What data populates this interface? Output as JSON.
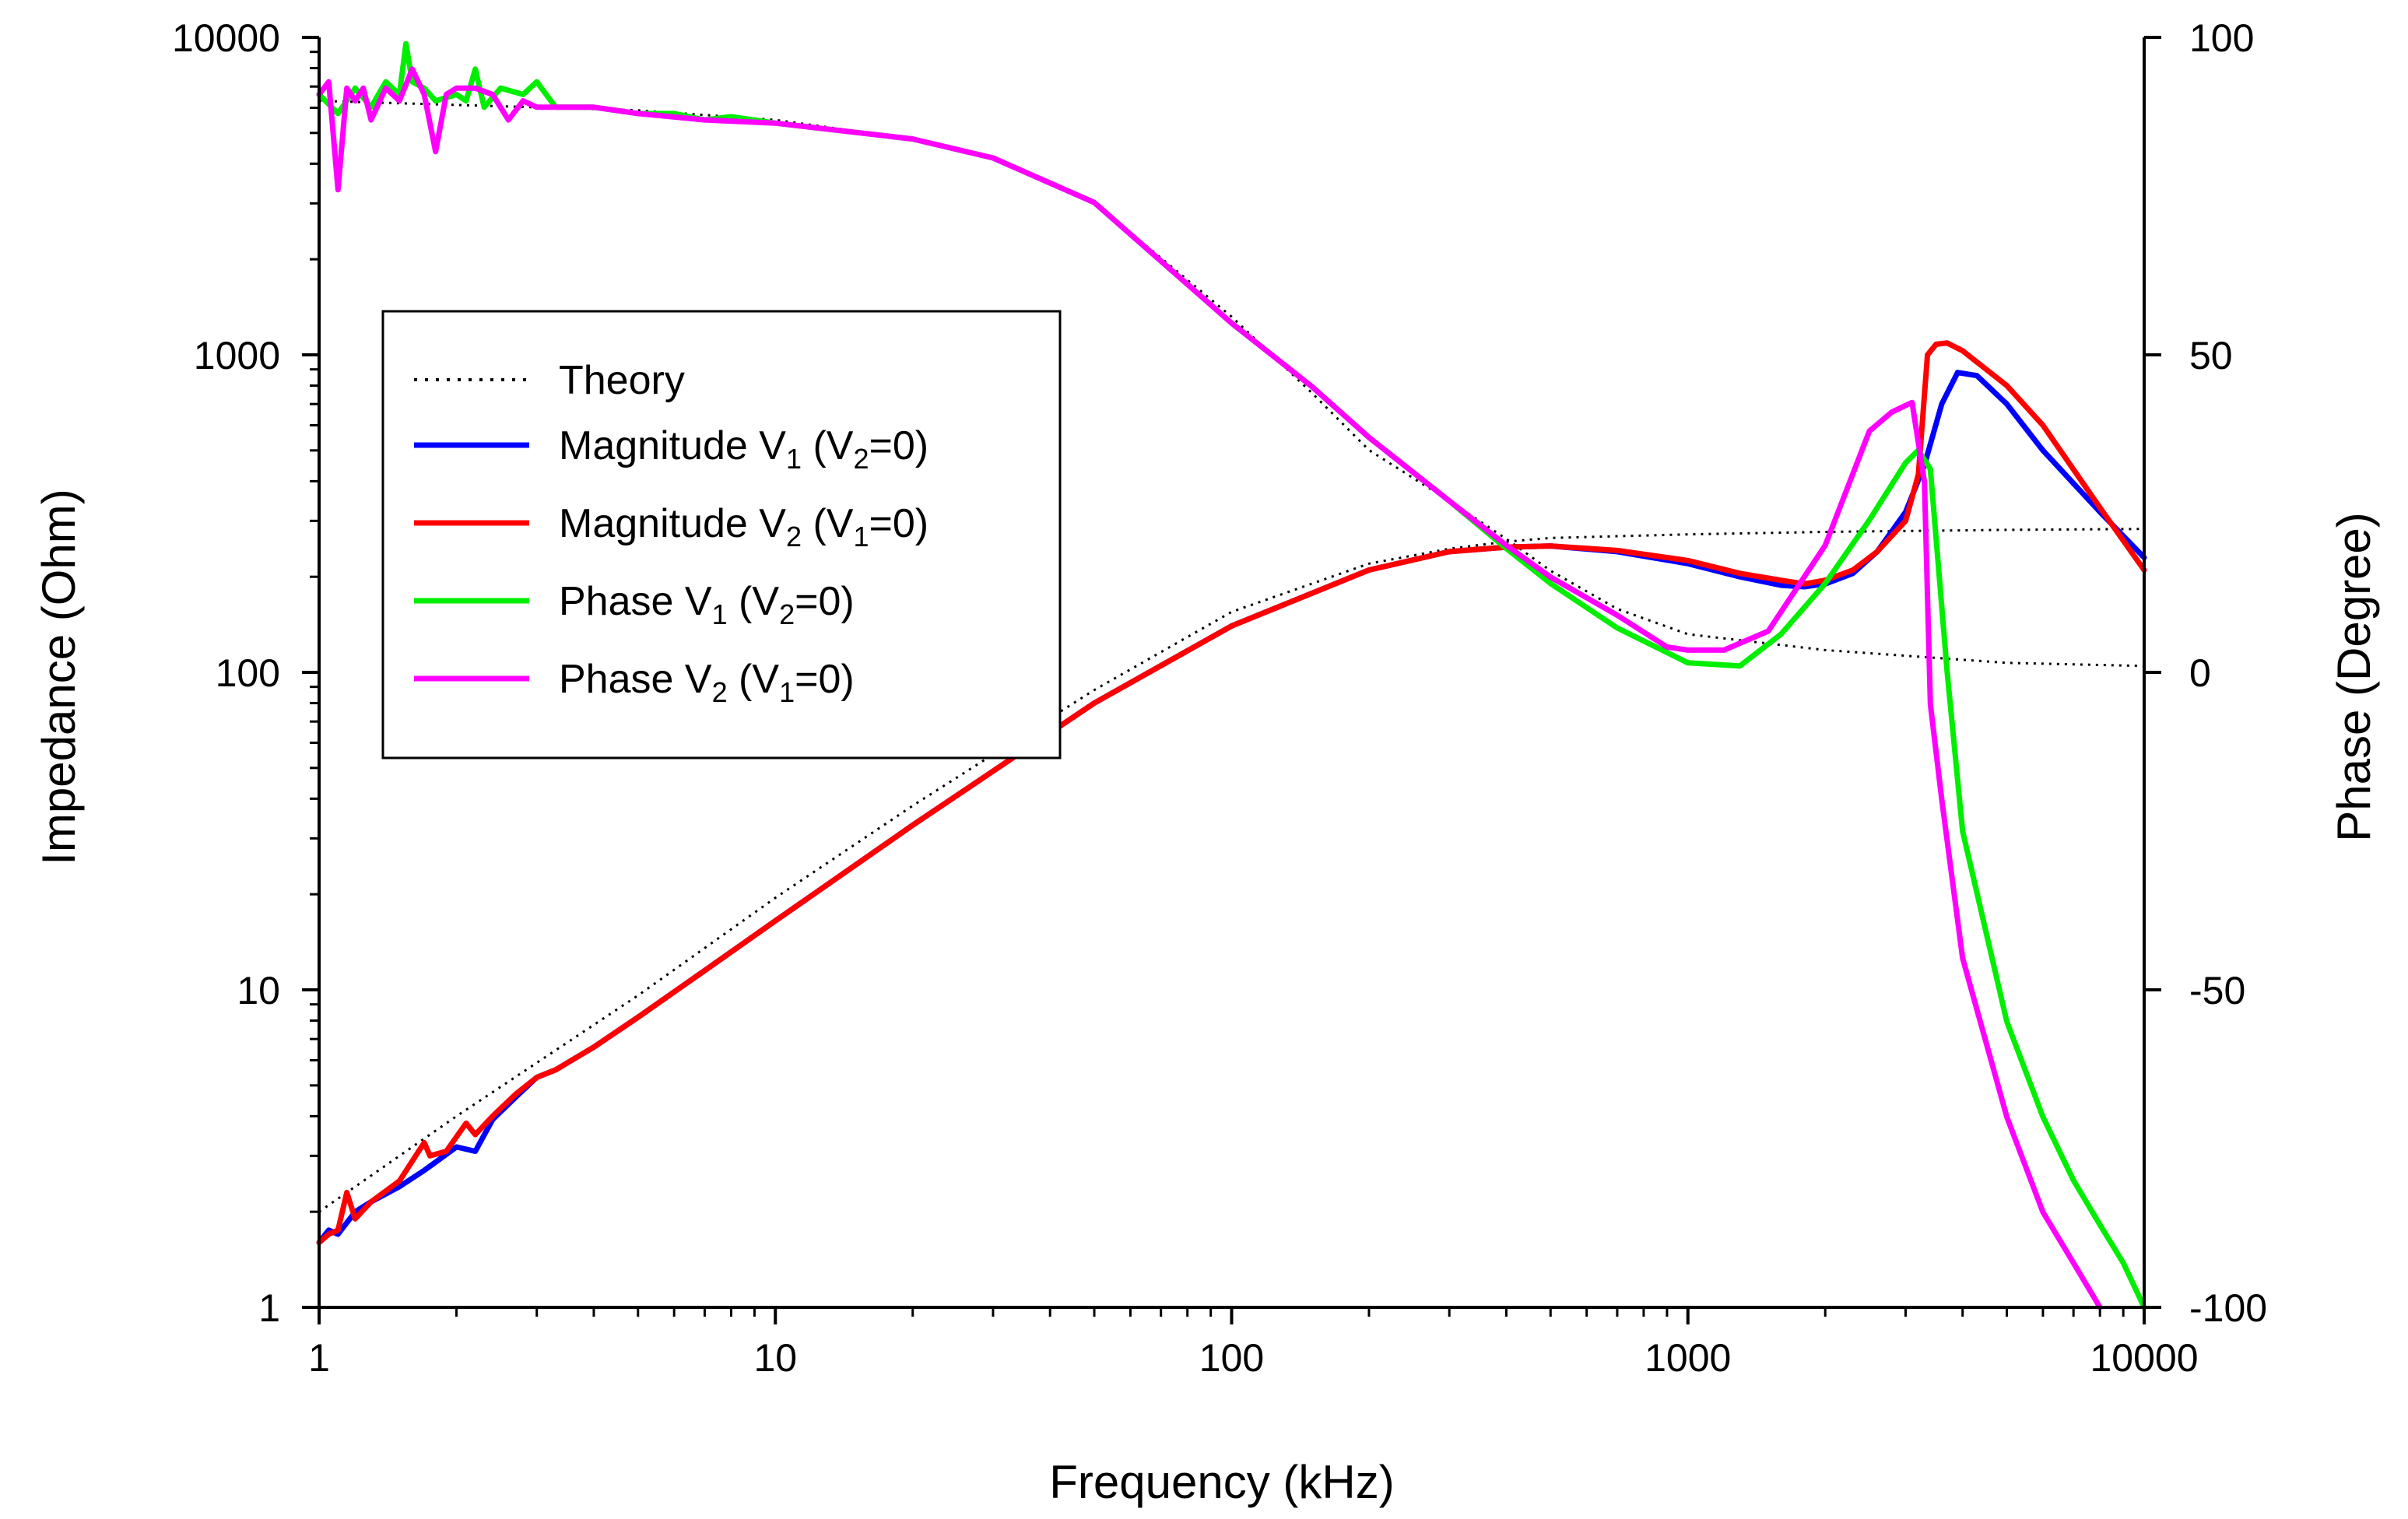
{
  "chart_data": {
    "type": "line",
    "title": "",
    "xlabel": "Frequency (kHz)",
    "ylabel_left": "Impedance (Ohm)",
    "ylabel_right": "Phase (Degree)",
    "xscale": "log",
    "yscale_left": "log",
    "xlim": [
      1,
      10000
    ],
    "ylim_left": [
      1,
      10000
    ],
    "ylim_right": [
      -100,
      100
    ],
    "x_ticks": [
      "1",
      "10",
      "100",
      "1000",
      "10000"
    ],
    "y_left_ticks": [
      "1",
      "10",
      "100",
      "1000",
      "10000"
    ],
    "y_right_ticks": [
      "-100",
      "-50",
      "0",
      "50",
      "100"
    ],
    "grid": false,
    "legend_position": "left-middle",
    "legend": [
      {
        "id": "theory",
        "base": "Theory",
        "sub1": "",
        "mid": "",
        "sub2": "",
        "tail": "",
        "color": "#000000",
        "style": "dotted"
      },
      {
        "id": "magv1",
        "base": "Magnitude V",
        "sub1": "1",
        "mid": " (V",
        "sub2": "2",
        "tail": "=0)",
        "color": "#0000ff",
        "style": "solid"
      },
      {
        "id": "magv2",
        "base": "Magnitude V",
        "sub1": "2",
        "mid": " (V",
        "sub2": "1",
        "tail": "=0)",
        "color": "#ff0000",
        "style": "solid"
      },
      {
        "id": "phv1",
        "base": "Phase V",
        "sub1": "1",
        "mid": " (V",
        "sub2": "2",
        "tail": "=0)",
        "color": "#00ee00",
        "style": "solid"
      },
      {
        "id": "phv2",
        "base": "Phase V",
        "sub1": "2",
        "mid": " (V",
        "sub2": "1",
        "tail": "=0)",
        "color": "#ff00ff",
        "style": "solid"
      }
    ],
    "series": [
      {
        "id": "theory_mag",
        "name": "Theory",
        "axis": "left",
        "color": "#000000",
        "style": "dotted",
        "x": [
          1,
          2,
          5,
          10,
          20,
          50,
          100,
          200,
          300,
          400,
          500,
          1000,
          2000,
          5000,
          10000
        ],
        "y": [
          2,
          4,
          9.6,
          19.5,
          38,
          88,
          155,
          220,
          245,
          258,
          265,
          272,
          277,
          281,
          283
        ]
      },
      {
        "id": "theory_phase",
        "name": "Theory",
        "axis": "right",
        "color": "#000000",
        "style": "dotted",
        "x": [
          1,
          5,
          10,
          20,
          30,
          50,
          100,
          150,
          200,
          300,
          400,
          500,
          700,
          1000,
          2000,
          5000,
          10000
        ],
        "y": [
          90,
          88.5,
          87,
          84,
          81,
          74,
          56,
          44,
          35,
          27,
          21,
          16,
          10,
          6,
          3.5,
          1.5,
          1
        ]
      },
      {
        "id": "mag_v1",
        "name": "Magnitude V1 (V2=0)",
        "axis": "left",
        "color": "#0000ff",
        "style": "solid",
        "x": [
          1,
          1.05,
          1.1,
          1.2,
          1.3,
          1.5,
          1.7,
          2,
          2.2,
          2.4,
          2.7,
          3,
          3.3,
          4,
          5,
          7,
          10,
          20,
          50,
          100,
          200,
          300,
          400,
          500,
          700,
          1000,
          1300,
          1600,
          1800,
          2000,
          2300,
          2600,
          3000,
          3300,
          3600,
          3900,
          4300,
          5000,
          6000,
          8000,
          10000
        ],
        "y": [
          1.6,
          1.75,
          1.7,
          2.0,
          2.15,
          2.4,
          2.7,
          3.2,
          3.1,
          3.9,
          4.6,
          5.3,
          5.6,
          6.6,
          8.2,
          11.5,
          16.5,
          33,
          80,
          140,
          210,
          240,
          248,
          250,
          240,
          220,
          200,
          188,
          186,
          190,
          205,
          240,
          320,
          450,
          700,
          880,
          860,
          700,
          500,
          320,
          230
        ]
      },
      {
        "id": "mag_v2",
        "name": "Magnitude V2 (V1=0)",
        "axis": "left",
        "color": "#ff0000",
        "style": "solid",
        "x": [
          1,
          1.05,
          1.1,
          1.15,
          1.2,
          1.3,
          1.5,
          1.7,
          1.75,
          1.9,
          2.1,
          2.2,
          2.4,
          2.7,
          3,
          3.3,
          4,
          5,
          7,
          10,
          20,
          50,
          100,
          200,
          300,
          400,
          500,
          700,
          1000,
          1300,
          1600,
          1800,
          2000,
          2300,
          2600,
          3000,
          3200,
          3350,
          3500,
          3700,
          4000,
          5000,
          6000,
          8000,
          10000
        ],
        "y": [
          1.6,
          1.7,
          1.75,
          2.3,
          1.9,
          2.15,
          2.5,
          3.3,
          3.0,
          3.1,
          3.8,
          3.5,
          4.0,
          4.7,
          5.3,
          5.6,
          6.6,
          8.2,
          11.5,
          16.5,
          33,
          80,
          140,
          210,
          240,
          248,
          250,
          242,
          225,
          205,
          195,
          190,
          195,
          210,
          240,
          300,
          420,
          1000,
          1080,
          1090,
          1030,
          800,
          600,
          330,
          210
        ]
      },
      {
        "id": "phase_v1",
        "name": "Phase V1 (V2=0)",
        "axis": "right",
        "color": "#00ee00",
        "style": "solid",
        "x": [
          1,
          1.1,
          1.2,
          1.3,
          1.4,
          1.5,
          1.55,
          1.6,
          1.7,
          1.8,
          2,
          2.1,
          2.2,
          2.3,
          2.5,
          2.8,
          3,
          3.3,
          4,
          5,
          6,
          7,
          8,
          10,
          20,
          30,
          50,
          100,
          150,
          200,
          300,
          400,
          500,
          700,
          1000,
          1300,
          1600,
          2000,
          2500,
          3000,
          3200,
          3400,
          3700,
          4000,
          5000,
          6000,
          7000,
          8000,
          9000,
          10000
        ],
        "y": [
          91,
          88,
          92,
          89,
          93,
          91,
          99,
          93,
          92,
          90,
          91,
          90,
          95,
          89,
          92,
          91,
          93,
          89,
          89,
          88,
          88,
          87,
          87.5,
          86.5,
          84,
          81,
          74,
          55,
          45,
          37,
          27,
          19.5,
          14,
          7,
          1.5,
          1,
          6,
          14,
          24,
          33,
          35,
          32,
          0,
          -25,
          -55,
          -70,
          -80,
          -87,
          -93,
          -100
        ]
      },
      {
        "id": "phase_v2",
        "name": "Phase V2 (V1=0)",
        "axis": "right",
        "color": "#ff00ff",
        "style": "solid",
        "x": [
          1,
          1.05,
          1.1,
          1.15,
          1.2,
          1.25,
          1.3,
          1.4,
          1.5,
          1.6,
          1.7,
          1.8,
          1.9,
          2,
          2.2,
          2.4,
          2.6,
          2.8,
          3,
          3.3,
          4,
          5,
          7,
          10,
          20,
          30,
          50,
          100,
          150,
          200,
          300,
          400,
          500,
          700,
          900,
          1000,
          1200,
          1500,
          2000,
          2500,
          2800,
          3100,
          3300,
          3400,
          3600,
          4000,
          5000,
          6000,
          7000,
          8000
        ],
        "y": [
          91,
          93,
          76,
          92,
          90,
          92,
          87,
          92,
          90,
          95,
          91,
          82,
          91,
          92,
          92,
          91,
          87,
          90,
          89,
          89,
          89,
          88,
          87,
          86.5,
          84,
          81,
          74,
          55,
          45,
          37,
          27,
          20,
          15,
          9,
          4,
          3.5,
          3.5,
          6.5,
          20,
          38,
          41,
          42.5,
          30,
          -5,
          -20,
          -45,
          -70,
          -85,
          -93,
          -100
        ]
      }
    ]
  }
}
